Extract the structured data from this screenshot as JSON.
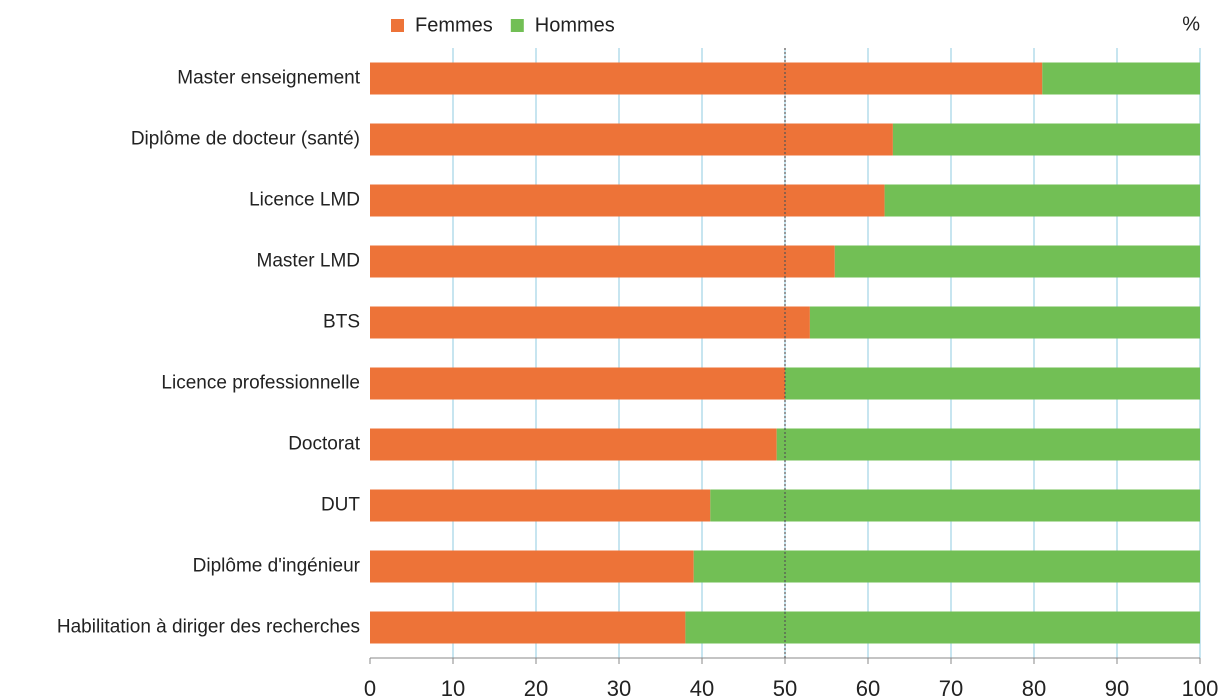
{
  "chart_data": {
    "type": "stacked_bar_horizontal",
    "unit": "%",
    "categories": [
      "Master enseignement",
      "Diplôme de docteur (santé)",
      "Licence LMD",
      "Master LMD",
      "BTS",
      "Licence professionnelle",
      "Doctorat",
      "DUT",
      "Diplôme d'ingénieur",
      "Habilitation à diriger des recherches"
    ],
    "series": [
      {
        "name": "Femmes",
        "color": "#ed7338",
        "values": [
          81,
          63,
          62,
          56,
          53,
          50,
          49,
          41,
          39,
          38
        ]
      },
      {
        "name": "Hommes",
        "color": "#72bf55",
        "values": [
          19,
          37,
          38,
          44,
          47,
          50,
          51,
          59,
          61,
          62
        ]
      }
    ],
    "xlim": [
      0,
      100
    ],
    "xticks": [
      0,
      10,
      20,
      30,
      40,
      50,
      60,
      70,
      80,
      90,
      100
    ],
    "grid": true,
    "grid_color": "#8fcbe0",
    "reference_line": 50,
    "legend": "top"
  }
}
